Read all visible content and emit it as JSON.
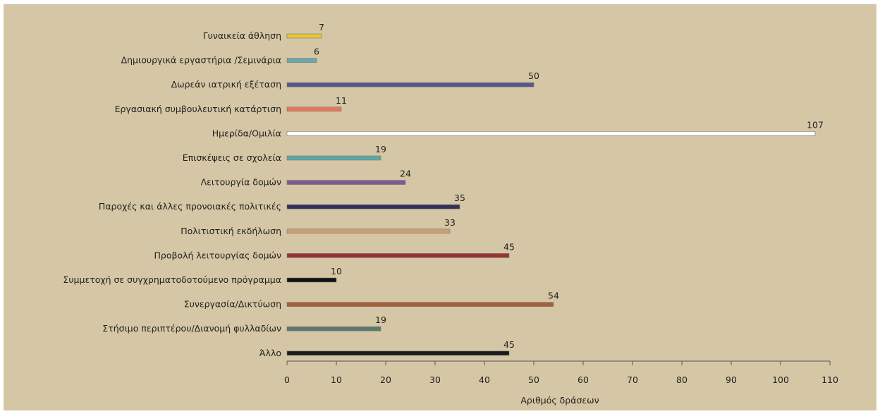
{
  "chart_data": {
    "type": "bar",
    "orientation": "horizontal",
    "title": "",
    "xlabel": "Αριθμός δράσεων",
    "ylabel": "",
    "xlim": [
      0,
      110
    ],
    "x_ticks": [
      "0",
      "10",
      "20",
      "30",
      "40",
      "50",
      "60",
      "70",
      "80",
      "90",
      "100",
      "110"
    ],
    "grid": false,
    "legend": "none",
    "categories": [
      "Γυναικεία άθληση",
      "Δημιουργικά εργαστήρια /Σεμινάρια",
      "Δωρεάν ιατρική εξέταση",
      "Εργασιακή συμβουλευτική κατάρτιση",
      "Ημερίδα/Ομιλία",
      "Επισκέψεις σε σχολεία",
      "Λειτουργία δομών",
      "Παροχές και άλλες προνοιακές πολιτικές",
      "Πολιτιστική εκδήλωση",
      "Προβολή λειτουργίας δομών",
      "Συμμετοχή σε συγχρηματοδοτούμενο πρόγραμμα",
      "Συνεργασία/Δικτύωση",
      "Στήσιμο περιπτέρου/Διανομή φυλλαδίων",
      "Άλλο"
    ],
    "values": [
      7,
      6,
      50,
      11,
      107,
      19,
      24,
      35,
      33,
      45,
      10,
      54,
      19,
      45
    ],
    "value_labels": [
      "7",
      "6",
      "50",
      "11",
      "107",
      "19",
      "24",
      "35",
      "33",
      "45",
      "10",
      "54",
      "19",
      "45"
    ],
    "colors": [
      "#e8c53a",
      "#6aa7a8",
      "#53588c",
      "#e5785a",
      "#ffffff",
      "#5fa6a6",
      "#7c5c8e",
      "#34305a",
      "#cc9e70",
      "#9a3434",
      "#111111",
      "#a9603a",
      "#5c7a6c",
      "#1a1a1a"
    ]
  }
}
